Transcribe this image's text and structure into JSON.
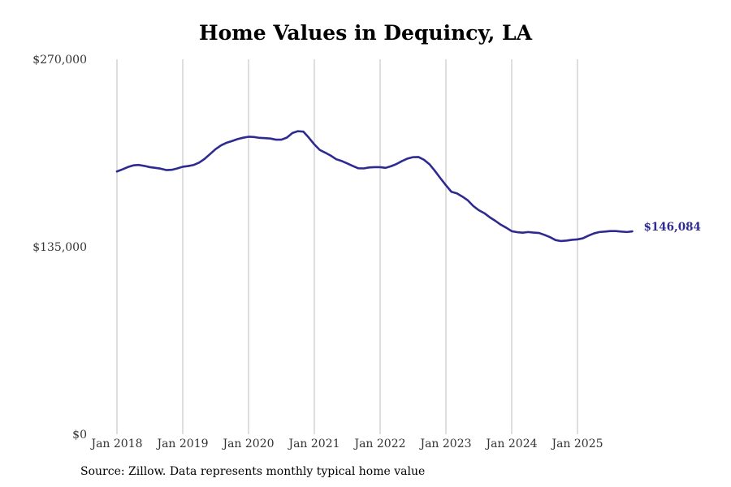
{
  "chart_data": {
    "type": "line",
    "title": "Home Values in Dequincy, LA",
    "xlabel": "",
    "ylabel": "",
    "ylim": [
      0,
      270000
    ],
    "y_ticks": [
      {
        "value": 0,
        "label": "$0"
      },
      {
        "value": 135000,
        "label": "$135,000"
      },
      {
        "value": 270000,
        "label": "$270,000"
      }
    ],
    "x_ticks": [
      {
        "value": 2018.0,
        "label": "Jan 2018"
      },
      {
        "value": 2019.0,
        "label": "Jan 2019"
      },
      {
        "value": 2020.0,
        "label": "Jan 2020"
      },
      {
        "value": 2021.0,
        "label": "Jan 2021"
      },
      {
        "value": 2022.0,
        "label": "Jan 2022"
      },
      {
        "value": 2023.0,
        "label": "Jan 2023"
      },
      {
        "value": 2024.0,
        "label": "Jan 2024"
      },
      {
        "value": 2025.0,
        "label": "Jan 2025"
      }
    ],
    "grid": "vertical",
    "line_color": "#2e2a8f",
    "end_label": "$146,084",
    "series": [
      {
        "name": "Typical home value",
        "x": [
          2018.0,
          2018.083,
          2018.167,
          2018.25,
          2018.333,
          2018.417,
          2018.5,
          2018.583,
          2018.667,
          2018.75,
          2018.833,
          2018.917,
          2019.0,
          2019.083,
          2019.167,
          2019.25,
          2019.333,
          2019.417,
          2019.5,
          2019.583,
          2019.667,
          2019.75,
          2019.833,
          2019.917,
          2020.0,
          2020.083,
          2020.167,
          2020.25,
          2020.333,
          2020.417,
          2020.5,
          2020.583,
          2020.667,
          2020.75,
          2020.833,
          2020.917,
          2021.0,
          2021.083,
          2021.167,
          2021.25,
          2021.333,
          2021.417,
          2021.5,
          2021.583,
          2021.667,
          2021.75,
          2021.833,
          2021.917,
          2022.0,
          2022.083,
          2022.167,
          2022.25,
          2022.333,
          2022.417,
          2022.5,
          2022.583,
          2022.667,
          2022.75,
          2022.833,
          2022.917,
          2023.0,
          2023.083,
          2023.167,
          2023.25,
          2023.333,
          2023.417,
          2023.5,
          2023.583,
          2023.667,
          2023.75,
          2023.833,
          2023.917,
          2024.0,
          2024.083,
          2024.167,
          2024.25,
          2024.333,
          2024.417,
          2024.5,
          2024.583,
          2024.667,
          2024.75,
          2024.833,
          2024.917,
          2025.0,
          2025.083,
          2025.167,
          2025.25,
          2025.333,
          2025.417,
          2025.5,
          2025.583,
          2025.667,
          2025.75,
          2025.833
        ],
        "values": [
          189200,
          190700,
          192400,
          193600,
          193900,
          193200,
          192300,
          191800,
          191200,
          190200,
          190400,
          191400,
          192600,
          193100,
          193900,
          195600,
          198300,
          201800,
          205300,
          208000,
          209900,
          211100,
          212500,
          213500,
          214200,
          214000,
          213400,
          213200,
          212900,
          212100,
          212100,
          213600,
          216900,
          218200,
          217900,
          213500,
          208700,
          204700,
          202700,
          200600,
          198000,
          196700,
          195000,
          193200,
          191500,
          191400,
          192100,
          192300,
          192300,
          191800,
          193000,
          194600,
          196700,
          198500,
          199500,
          199600,
          197600,
          194400,
          189600,
          184300,
          179300,
          174600,
          173400,
          171100,
          168400,
          164300,
          161300,
          159200,
          156200,
          153700,
          150900,
          148700,
          146200,
          145500,
          145100,
          145600,
          145200,
          144900,
          143500,
          141900,
          139800,
          139100,
          139400,
          140000,
          140300,
          141100,
          143000,
          144600,
          145600,
          145900,
          146300,
          146300,
          145900,
          145600,
          146084
        ]
      }
    ]
  },
  "source": "Source: Zillow. Data represents monthly typical home value"
}
